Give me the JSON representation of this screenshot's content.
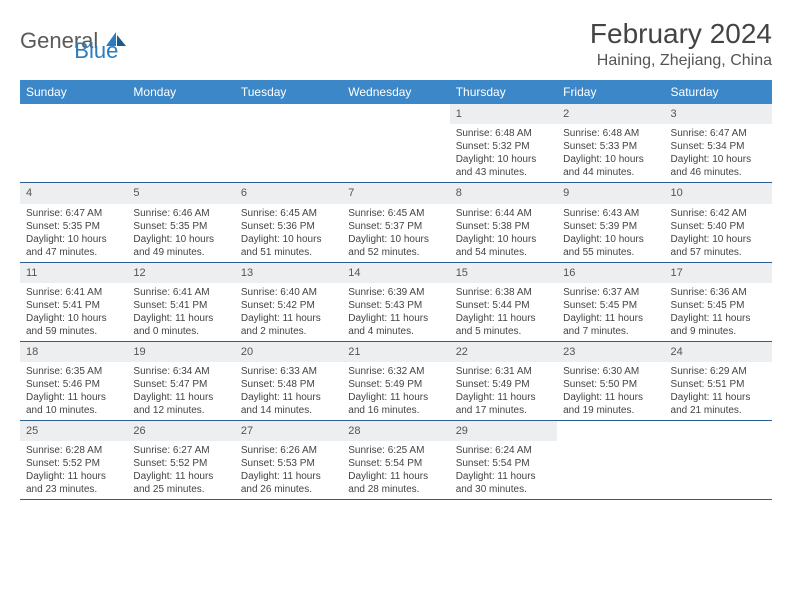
{
  "logo": {
    "text1": "General",
    "text2": "Blue"
  },
  "title": "February 2024",
  "location": "Haining, Zhejiang, China",
  "colors": {
    "header_bg": "#3b87c8",
    "header_text": "#ffffff",
    "date_bg": "#eceef0",
    "border": "#2b5f8f",
    "body_text": "#444444",
    "logo_gray": "#5a5a5a",
    "logo_blue": "#2b7bbf"
  },
  "day_names": [
    "Sunday",
    "Monday",
    "Tuesday",
    "Wednesday",
    "Thursday",
    "Friday",
    "Saturday"
  ],
  "weeks": [
    [
      {
        "empty": true
      },
      {
        "empty": true
      },
      {
        "empty": true
      },
      {
        "empty": true
      },
      {
        "date": "1",
        "sunrise": "Sunrise: 6:48 AM",
        "sunset": "Sunset: 5:32 PM",
        "daylight": "Daylight: 10 hours and 43 minutes."
      },
      {
        "date": "2",
        "sunrise": "Sunrise: 6:48 AM",
        "sunset": "Sunset: 5:33 PM",
        "daylight": "Daylight: 10 hours and 44 minutes."
      },
      {
        "date": "3",
        "sunrise": "Sunrise: 6:47 AM",
        "sunset": "Sunset: 5:34 PM",
        "daylight": "Daylight: 10 hours and 46 minutes."
      }
    ],
    [
      {
        "date": "4",
        "sunrise": "Sunrise: 6:47 AM",
        "sunset": "Sunset: 5:35 PM",
        "daylight": "Daylight: 10 hours and 47 minutes."
      },
      {
        "date": "5",
        "sunrise": "Sunrise: 6:46 AM",
        "sunset": "Sunset: 5:35 PM",
        "daylight": "Daylight: 10 hours and 49 minutes."
      },
      {
        "date": "6",
        "sunrise": "Sunrise: 6:45 AM",
        "sunset": "Sunset: 5:36 PM",
        "daylight": "Daylight: 10 hours and 51 minutes."
      },
      {
        "date": "7",
        "sunrise": "Sunrise: 6:45 AM",
        "sunset": "Sunset: 5:37 PM",
        "daylight": "Daylight: 10 hours and 52 minutes."
      },
      {
        "date": "8",
        "sunrise": "Sunrise: 6:44 AM",
        "sunset": "Sunset: 5:38 PM",
        "daylight": "Daylight: 10 hours and 54 minutes."
      },
      {
        "date": "9",
        "sunrise": "Sunrise: 6:43 AM",
        "sunset": "Sunset: 5:39 PM",
        "daylight": "Daylight: 10 hours and 55 minutes."
      },
      {
        "date": "10",
        "sunrise": "Sunrise: 6:42 AM",
        "sunset": "Sunset: 5:40 PM",
        "daylight": "Daylight: 10 hours and 57 minutes."
      }
    ],
    [
      {
        "date": "11",
        "sunrise": "Sunrise: 6:41 AM",
        "sunset": "Sunset: 5:41 PM",
        "daylight": "Daylight: 10 hours and 59 minutes."
      },
      {
        "date": "12",
        "sunrise": "Sunrise: 6:41 AM",
        "sunset": "Sunset: 5:41 PM",
        "daylight": "Daylight: 11 hours and 0 minutes."
      },
      {
        "date": "13",
        "sunrise": "Sunrise: 6:40 AM",
        "sunset": "Sunset: 5:42 PM",
        "daylight": "Daylight: 11 hours and 2 minutes."
      },
      {
        "date": "14",
        "sunrise": "Sunrise: 6:39 AM",
        "sunset": "Sunset: 5:43 PM",
        "daylight": "Daylight: 11 hours and 4 minutes."
      },
      {
        "date": "15",
        "sunrise": "Sunrise: 6:38 AM",
        "sunset": "Sunset: 5:44 PM",
        "daylight": "Daylight: 11 hours and 5 minutes."
      },
      {
        "date": "16",
        "sunrise": "Sunrise: 6:37 AM",
        "sunset": "Sunset: 5:45 PM",
        "daylight": "Daylight: 11 hours and 7 minutes."
      },
      {
        "date": "17",
        "sunrise": "Sunrise: 6:36 AM",
        "sunset": "Sunset: 5:45 PM",
        "daylight": "Daylight: 11 hours and 9 minutes."
      }
    ],
    [
      {
        "date": "18",
        "sunrise": "Sunrise: 6:35 AM",
        "sunset": "Sunset: 5:46 PM",
        "daylight": "Daylight: 11 hours and 10 minutes."
      },
      {
        "date": "19",
        "sunrise": "Sunrise: 6:34 AM",
        "sunset": "Sunset: 5:47 PM",
        "daylight": "Daylight: 11 hours and 12 minutes."
      },
      {
        "date": "20",
        "sunrise": "Sunrise: 6:33 AM",
        "sunset": "Sunset: 5:48 PM",
        "daylight": "Daylight: 11 hours and 14 minutes."
      },
      {
        "date": "21",
        "sunrise": "Sunrise: 6:32 AM",
        "sunset": "Sunset: 5:49 PM",
        "daylight": "Daylight: 11 hours and 16 minutes."
      },
      {
        "date": "22",
        "sunrise": "Sunrise: 6:31 AM",
        "sunset": "Sunset: 5:49 PM",
        "daylight": "Daylight: 11 hours and 17 minutes."
      },
      {
        "date": "23",
        "sunrise": "Sunrise: 6:30 AM",
        "sunset": "Sunset: 5:50 PM",
        "daylight": "Daylight: 11 hours and 19 minutes."
      },
      {
        "date": "24",
        "sunrise": "Sunrise: 6:29 AM",
        "sunset": "Sunset: 5:51 PM",
        "daylight": "Daylight: 11 hours and 21 minutes."
      }
    ],
    [
      {
        "date": "25",
        "sunrise": "Sunrise: 6:28 AM",
        "sunset": "Sunset: 5:52 PM",
        "daylight": "Daylight: 11 hours and 23 minutes."
      },
      {
        "date": "26",
        "sunrise": "Sunrise: 6:27 AM",
        "sunset": "Sunset: 5:52 PM",
        "daylight": "Daylight: 11 hours and 25 minutes."
      },
      {
        "date": "27",
        "sunrise": "Sunrise: 6:26 AM",
        "sunset": "Sunset: 5:53 PM",
        "daylight": "Daylight: 11 hours and 26 minutes."
      },
      {
        "date": "28",
        "sunrise": "Sunrise: 6:25 AM",
        "sunset": "Sunset: 5:54 PM",
        "daylight": "Daylight: 11 hours and 28 minutes."
      },
      {
        "date": "29",
        "sunrise": "Sunrise: 6:24 AM",
        "sunset": "Sunset: 5:54 PM",
        "daylight": "Daylight: 11 hours and 30 minutes."
      },
      {
        "empty": true
      },
      {
        "empty": true
      }
    ]
  ]
}
